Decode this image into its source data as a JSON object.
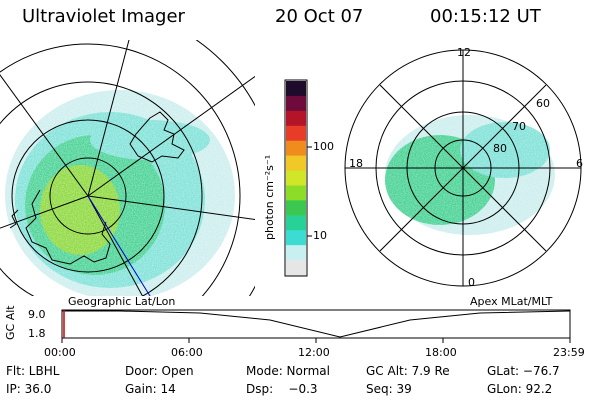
{
  "header": {
    "instrument": "Ultraviolet Imager",
    "date": "20 Oct 07",
    "time": "00:15:12 UT"
  },
  "left_map": {
    "caption": "Geographic Lat/Lon"
  },
  "right_map": {
    "caption": "Apex MLat/MLT",
    "mlt_labels": [
      "12",
      "18",
      "6",
      "0"
    ],
    "lat_labels": [
      "60",
      "70",
      "80"
    ]
  },
  "colorbar": {
    "unit_label": "photon cm⁻²s⁻¹",
    "tick_labels": [
      "100",
      "10"
    ],
    "colors": [
      "#e6e6e6",
      "#c8f0f0",
      "#3cdcd2",
      "#28d296",
      "#3cc850",
      "#8cdc28",
      "#d2e628",
      "#f0c828",
      "#f08c1e",
      "#e63c28",
      "#b41428",
      "#6e0a3c",
      "#1e0a2a"
    ]
  },
  "alt_plot": {
    "ylabel": "GC Alt",
    "y_ticks": [
      "9.0",
      "1.8"
    ],
    "x_ticks": [
      "00:00",
      "06:00",
      "12:00",
      "18:00",
      "23:59"
    ],
    "current_marker_time": "00:15"
  },
  "status": {
    "flt": "Flt: LBHL",
    "door": "Door: Open",
    "mode": "Mode: Normal",
    "gc_alt": "GC Alt: 7.9 Re",
    "glat": "GLat: −76.7",
    "ip": "IP: 36.0",
    "gain": "Gain: 14",
    "dsp": "Dsp:    −0.3",
    "seq": "Seq: 39",
    "glon": "GLon: 92.2"
  },
  "colors": {
    "aurora_dim": "#c8ecec",
    "aurora_mid": "#3cdcc8",
    "aurora_bright": "#50c85a",
    "aurora_peak": "#9cdc3c",
    "marker": "#cc0000",
    "track": "#0000cc"
  }
}
